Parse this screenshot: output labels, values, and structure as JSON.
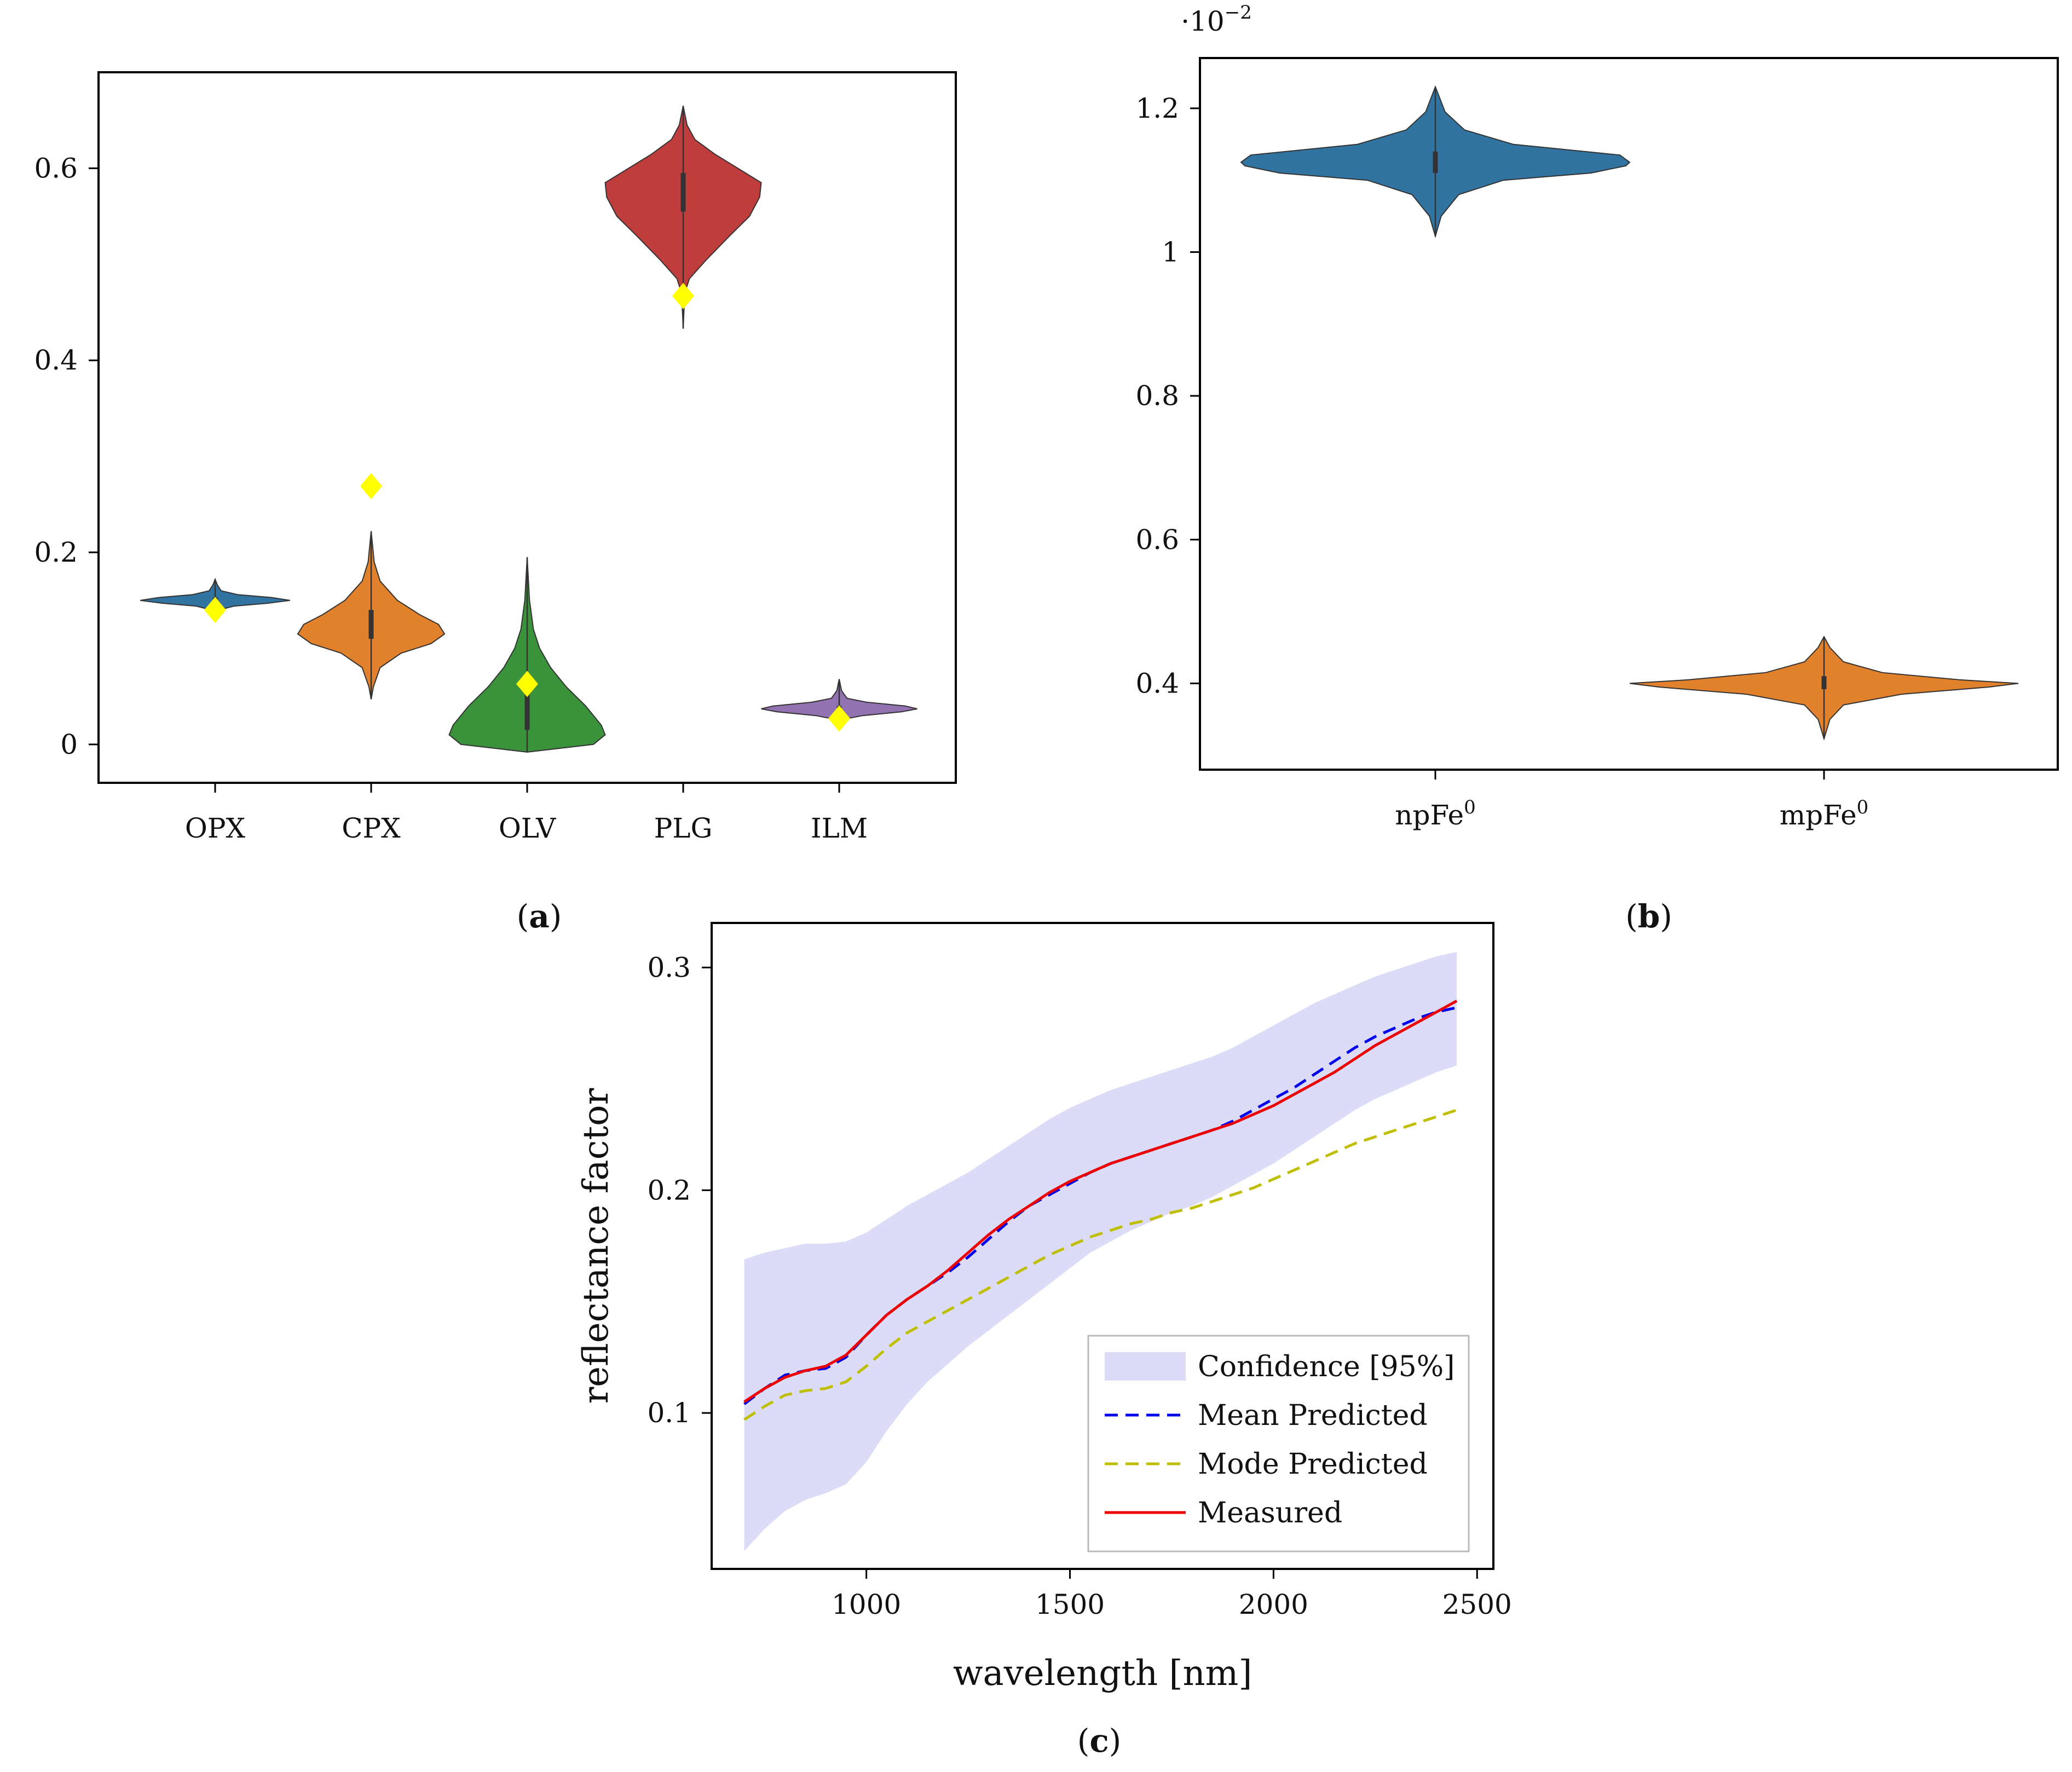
{
  "panel_labels": {
    "a": "a",
    "b": "b",
    "c": "c"
  },
  "chart_data": [
    {
      "id": "a",
      "type": "violin",
      "categories": [
        "OPX",
        "CPX",
        "OLV",
        "PLG",
        "ILM"
      ],
      "ylim": [
        -0.04,
        0.7
      ],
      "yticks": [
        0,
        0.2,
        0.4,
        0.6
      ],
      "ytick_labels": [
        "0",
        "0.2",
        "0.4",
        "0.6"
      ],
      "grid": false,
      "colors": [
        "#3274a1",
        "#e1812c",
        "#3a923a",
        "#c03d3e",
        "#9372b2"
      ],
      "marker_color": "#ffff00",
      "violins": [
        {
          "category": "OPX",
          "min": 0.13,
          "max": 0.172,
          "median": 0.15,
          "q1": 0.147,
          "q3": 0.153,
          "half_width": 0.48,
          "profile": [
            [
              0.13,
              0.0
            ],
            [
              0.14,
              0.05
            ],
            [
              0.144,
              0.25
            ],
            [
              0.147,
              0.7
            ],
            [
              0.15,
              1.0
            ],
            [
              0.153,
              0.75
            ],
            [
              0.156,
              0.3
            ],
            [
              0.16,
              0.08
            ],
            [
              0.166,
              0.03
            ],
            [
              0.172,
              0.0
            ]
          ]
        },
        {
          "category": "CPX",
          "min": 0.047,
          "max": 0.222,
          "median": 0.125,
          "q1": 0.11,
          "q3": 0.14,
          "half_width": 0.48,
          "profile": [
            [
              0.047,
              0.0
            ],
            [
              0.06,
              0.03
            ],
            [
              0.08,
              0.12
            ],
            [
              0.095,
              0.4
            ],
            [
              0.105,
              0.8
            ],
            [
              0.115,
              0.98
            ],
            [
              0.125,
              0.9
            ],
            [
              0.135,
              0.65
            ],
            [
              0.15,
              0.35
            ],
            [
              0.17,
              0.12
            ],
            [
              0.19,
              0.04
            ],
            [
              0.222,
              0.0
            ]
          ]
        },
        {
          "category": "OLV",
          "min": -0.008,
          "max": 0.195,
          "median": 0.035,
          "q1": 0.015,
          "q3": 0.06,
          "half_width": 0.5,
          "profile": [
            [
              -0.008,
              0.0
            ],
            [
              0.0,
              0.85
            ],
            [
              0.01,
              1.0
            ],
            [
              0.02,
              0.95
            ],
            [
              0.04,
              0.75
            ],
            [
              0.06,
              0.5
            ],
            [
              0.08,
              0.3
            ],
            [
              0.1,
              0.16
            ],
            [
              0.12,
              0.08
            ],
            [
              0.15,
              0.03
            ],
            [
              0.195,
              0.0
            ]
          ]
        },
        {
          "category": "PLG",
          "min": 0.433,
          "max": 0.665,
          "median": 0.57,
          "q1": 0.555,
          "q3": 0.595,
          "half_width": 0.5,
          "profile": [
            [
              0.433,
              0.0
            ],
            [
              0.47,
              0.02
            ],
            [
              0.485,
              0.08
            ],
            [
              0.505,
              0.3
            ],
            [
              0.53,
              0.6
            ],
            [
              0.55,
              0.85
            ],
            [
              0.57,
              0.98
            ],
            [
              0.585,
              1.0
            ],
            [
              0.6,
              0.7
            ],
            [
              0.615,
              0.4
            ],
            [
              0.63,
              0.15
            ],
            [
              0.645,
              0.05
            ],
            [
              0.665,
              0.0
            ]
          ]
        },
        {
          "category": "ILM",
          "min": 0.02,
          "max": 0.068,
          "median": 0.037,
          "q1": 0.034,
          "q3": 0.04,
          "half_width": 0.5,
          "profile": [
            [
              0.02,
              0.0
            ],
            [
              0.026,
              0.05
            ],
            [
              0.03,
              0.3
            ],
            [
              0.034,
              0.8
            ],
            [
              0.037,
              1.0
            ],
            [
              0.04,
              0.85
            ],
            [
              0.044,
              0.35
            ],
            [
              0.048,
              0.1
            ],
            [
              0.056,
              0.03
            ],
            [
              0.068,
              0.0
            ]
          ]
        }
      ],
      "markers": [
        {
          "category": "OPX",
          "value": 0.14
        },
        {
          "category": "CPX",
          "value": 0.269
        },
        {
          "category": "OLV",
          "value": 0.063
        },
        {
          "category": "PLG",
          "value": 0.467
        },
        {
          "category": "ILM",
          "value": 0.027
        }
      ]
    },
    {
      "id": "b",
      "type": "violin",
      "categories": [
        "npFe0",
        "mpFe0"
      ],
      "category_labels": [
        {
          "base": "npFe",
          "sup": "0"
        },
        {
          "base": "mpFe",
          "sup": "0"
        }
      ],
      "ylim": [
        0.28,
        1.27
      ],
      "yticks": [
        0.4,
        0.6,
        0.8,
        1.0,
        1.2
      ],
      "ytick_labels": [
        "0.4",
        "0.6",
        "0.8",
        "1",
        "1.2"
      ],
      "y_scale_label": {
        "prefix": "·10",
        "exponent": "−2"
      },
      "grid": false,
      "colors": [
        "#3274a1",
        "#e1812c"
      ],
      "violins": [
        {
          "category": "npFe0",
          "min": 1.022,
          "max": 1.23,
          "median": 1.12,
          "q1": 1.11,
          "q3": 1.14,
          "half_width": 0.5,
          "profile": [
            [
              1.022,
              0.0
            ],
            [
              1.05,
              0.03
            ],
            [
              1.08,
              0.12
            ],
            [
              1.1,
              0.35
            ],
            [
              1.11,
              0.8
            ],
            [
              1.12,
              0.98
            ],
            [
              1.125,
              1.0
            ],
            [
              1.135,
              0.95
            ],
            [
              1.15,
              0.4
            ],
            [
              1.17,
              0.15
            ],
            [
              1.195,
              0.05
            ],
            [
              1.23,
              0.0
            ]
          ]
        },
        {
          "category": "mpFe0",
          "min": 0.323,
          "max": 0.465,
          "median": 0.4,
          "q1": 0.392,
          "q3": 0.41,
          "half_width": 0.5,
          "profile": [
            [
              0.323,
              0.0
            ],
            [
              0.35,
              0.03
            ],
            [
              0.37,
              0.1
            ],
            [
              0.385,
              0.4
            ],
            [
              0.395,
              0.85
            ],
            [
              0.4,
              1.0
            ],
            [
              0.405,
              0.7
            ],
            [
              0.415,
              0.3
            ],
            [
              0.43,
              0.1
            ],
            [
              0.45,
              0.03
            ],
            [
              0.465,
              0.0
            ]
          ]
        }
      ]
    },
    {
      "id": "c",
      "type": "line",
      "xlabel": "wavelength [nm]",
      "ylabel": "reflectance factor",
      "xlim": [
        620,
        2540
      ],
      "ylim": [
        0.03,
        0.32
      ],
      "xticks": [
        1000,
        1500,
        2000,
        2500
      ],
      "xtick_labels": [
        "1000",
        "1500",
        "2000",
        "2500"
      ],
      "yticks": [
        0.1,
        0.2,
        0.3
      ],
      "ytick_labels": [
        "0.1",
        "0.2",
        "0.3"
      ],
      "grid": false,
      "legend_position": "bottom-right",
      "x": [
        700,
        750,
        800,
        850,
        900,
        950,
        1000,
        1050,
        1100,
        1150,
        1200,
        1250,
        1300,
        1350,
        1400,
        1450,
        1500,
        1550,
        1600,
        1650,
        1700,
        1750,
        1800,
        1850,
        1900,
        1950,
        2000,
        2050,
        2100,
        2150,
        2200,
        2250,
        2300,
        2350,
        2400,
        2450
      ],
      "band": {
        "name": "Confidence [95%]",
        "color": "#dcdcf8",
        "upper": [
          0.169,
          0.172,
          0.174,
          0.176,
          0.176,
          0.177,
          0.181,
          0.187,
          0.193,
          0.198,
          0.203,
          0.208,
          0.214,
          0.22,
          0.226,
          0.232,
          0.237,
          0.241,
          0.245,
          0.248,
          0.251,
          0.254,
          0.257,
          0.26,
          0.264,
          0.269,
          0.274,
          0.279,
          0.284,
          0.288,
          0.292,
          0.296,
          0.299,
          0.302,
          0.305,
          0.307
        ],
        "lower": [
          0.038,
          0.048,
          0.056,
          0.061,
          0.064,
          0.068,
          0.078,
          0.092,
          0.104,
          0.114,
          0.122,
          0.13,
          0.137,
          0.144,
          0.151,
          0.158,
          0.165,
          0.172,
          0.177,
          0.182,
          0.186,
          0.19,
          0.193,
          0.197,
          0.202,
          0.207,
          0.212,
          0.218,
          0.224,
          0.23,
          0.236,
          0.241,
          0.245,
          0.249,
          0.253,
          0.256
        ]
      },
      "series": [
        {
          "name": "Mean Predicted",
          "color": "#0000ee",
          "dash": "24,14",
          "values": [
            0.104,
            0.111,
            0.117,
            0.119,
            0.12,
            0.125,
            0.135,
            0.144,
            0.151,
            0.157,
            0.163,
            0.17,
            0.178,
            0.186,
            0.193,
            0.198,
            0.203,
            0.208,
            0.212,
            0.215,
            0.218,
            0.221,
            0.224,
            0.227,
            0.231,
            0.236,
            0.241,
            0.246,
            0.252,
            0.258,
            0.264,
            0.269,
            0.273,
            0.277,
            0.28,
            0.282
          ]
        },
        {
          "name": "Mode Predicted",
          "color": "#bfbf00",
          "dash": "24,14",
          "values": [
            0.097,
            0.103,
            0.108,
            0.11,
            0.111,
            0.114,
            0.121,
            0.129,
            0.136,
            0.141,
            0.146,
            0.151,
            0.156,
            0.161,
            0.166,
            0.171,
            0.175,
            0.179,
            0.182,
            0.185,
            0.187,
            0.19,
            0.192,
            0.195,
            0.198,
            0.201,
            0.205,
            0.209,
            0.213,
            0.217,
            0.221,
            0.224,
            0.227,
            0.23,
            0.233,
            0.236
          ]
        },
        {
          "name": "Measured",
          "color": "#ee0000",
          "dash": "",
          "values": [
            0.105,
            0.111,
            0.116,
            0.119,
            0.121,
            0.126,
            0.135,
            0.144,
            0.151,
            0.157,
            0.164,
            0.172,
            0.18,
            0.187,
            0.193,
            0.199,
            0.204,
            0.208,
            0.212,
            0.215,
            0.218,
            0.221,
            0.224,
            0.227,
            0.23,
            0.234,
            0.238,
            0.243,
            0.248,
            0.253,
            0.259,
            0.265,
            0.27,
            0.275,
            0.28,
            0.285
          ]
        }
      ]
    }
  ]
}
